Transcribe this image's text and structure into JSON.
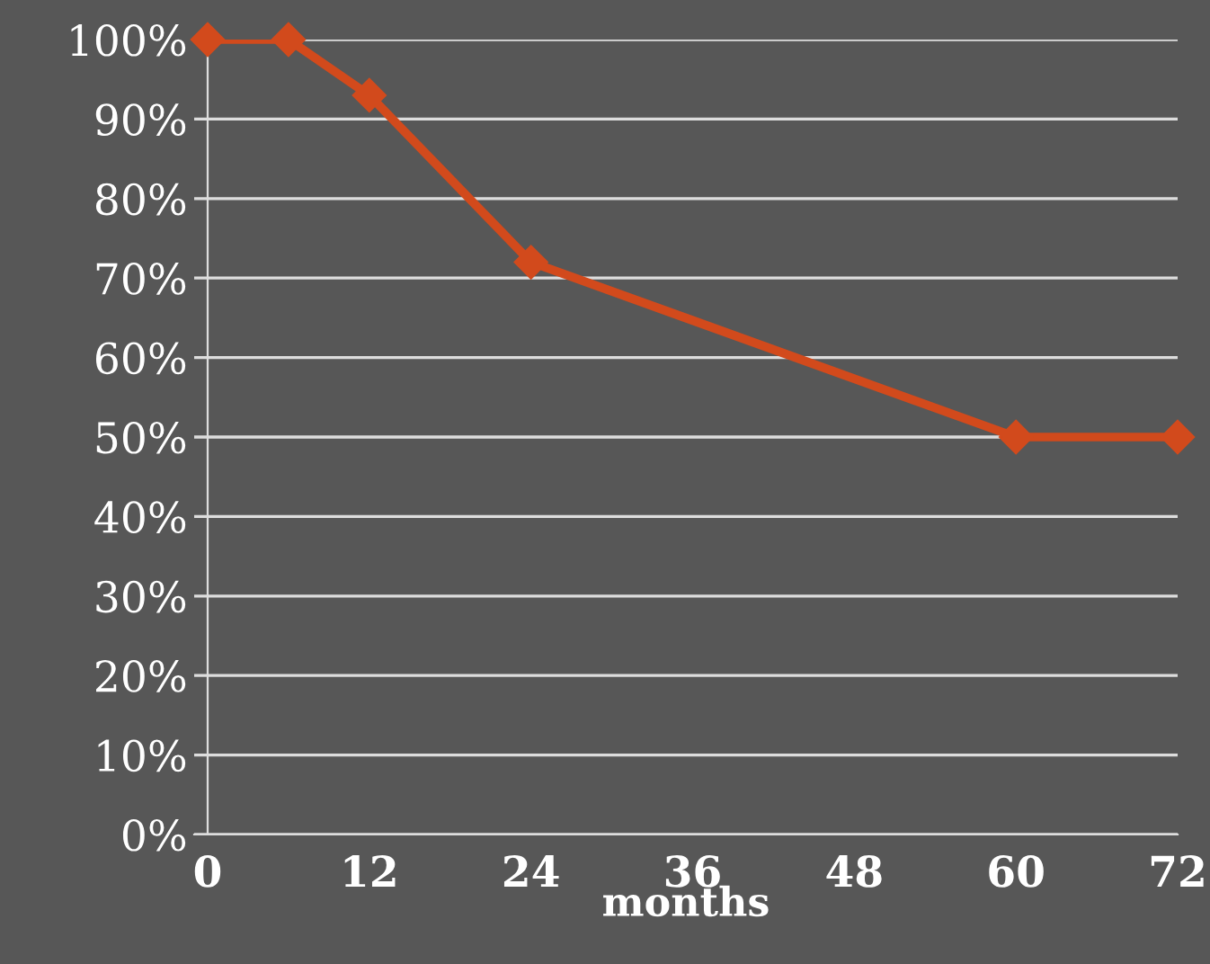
{
  "chart_data": {
    "type": "line",
    "xlabel": "months",
    "x": [
      0,
      6,
      12,
      24,
      60,
      72
    ],
    "series": [
      {
        "color": "#d24a1c",
        "values": [
          100,
          100,
          93,
          72,
          50,
          50
        ]
      }
    ],
    "xlim": [
      -1,
      72
    ],
    "xticks": [
      0,
      12,
      24,
      36,
      48,
      60,
      72
    ],
    "ylim": [
      0,
      100
    ],
    "yticks": [
      {
        "value": 0,
        "label": "0%"
      },
      {
        "value": 10,
        "label": "10%"
      },
      {
        "value": 20,
        "label": "20%"
      },
      {
        "value": 30,
        "label": "30%"
      },
      {
        "value": 40,
        "label": "40%"
      },
      {
        "value": 50,
        "label": "50%"
      },
      {
        "value": 60,
        "label": "60%"
      },
      {
        "value": 70,
        "label": "70%"
      },
      {
        "value": 80,
        "label": "80%"
      },
      {
        "value": 90,
        "label": "90%"
      },
      {
        "value": 100,
        "label": "100%"
      }
    ],
    "grid": "y",
    "marker": "diamond",
    "line_style": "solid"
  }
}
